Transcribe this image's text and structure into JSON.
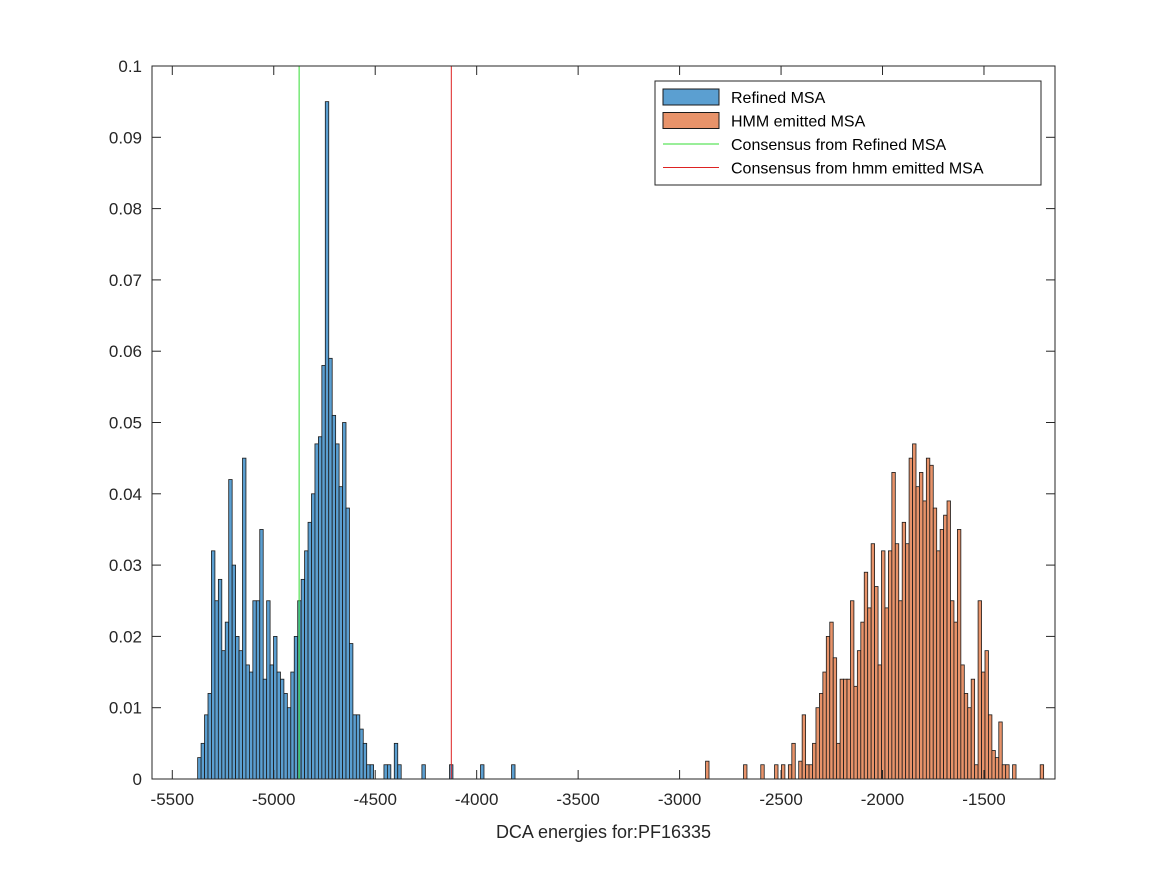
{
  "chart_data": {
    "type": "bar",
    "subtype": "histogram",
    "xlabel": "DCA energies for:PF16335",
    "ylabel": "",
    "title": "",
    "xlim": [
      -5600,
      -1150
    ],
    "ylim": [
      0,
      0.1
    ],
    "xticks": [
      -5500,
      -5000,
      -4500,
      -4000,
      -3500,
      -3000,
      -2500,
      -2000,
      -1500
    ],
    "xtick_labels": [
      "-5500",
      "-5000",
      "-4500",
      "-4000",
      "-3500",
      "-3000",
      "-2500",
      "-2000",
      "-1500"
    ],
    "yticks": [
      0,
      0.01,
      0.02,
      0.03,
      0.04,
      0.05,
      0.06,
      0.07,
      0.08,
      0.09,
      0.1
    ],
    "ytick_labels": [
      "0",
      "0.01",
      "0.02",
      "0.03",
      "0.04",
      "0.05",
      "0.06",
      "0.07",
      "0.08",
      "0.09",
      "0.1"
    ],
    "grid": false,
    "legend_position": "top-right",
    "series": [
      {
        "name": "Refined MSA",
        "kind": "histogram",
        "color": "#5b9fd1",
        "bin_start": -5375,
        "bin_width": 17,
        "values": [
          0.003,
          0.005,
          0.009,
          0.012,
          0.032,
          0.025,
          0.028,
          0.018,
          0.022,
          0.042,
          0.03,
          0.02,
          0.018,
          0.045,
          0.016,
          0.015,
          0.025,
          0.025,
          0.035,
          0.014,
          0.025,
          0.016,
          0.02,
          0.015,
          0.014,
          0.012,
          0.01,
          0.015,
          0.02,
          0.025,
          0.028,
          0.032,
          0.036,
          0.04,
          0.047,
          0.048,
          0.058,
          0.095,
          0.059,
          0.051,
          0.047,
          0.041,
          0.05,
          0.038,
          0.019,
          0.009,
          0.009,
          0.007,
          0.005,
          0.002,
          0.002,
          0,
          0,
          0,
          0.002,
          0.002,
          0,
          0.005,
          0.002,
          0,
          0,
          0,
          0,
          0,
          0,
          0.002,
          0,
          0,
          0,
          0,
          0,
          0,
          0,
          0.002,
          0,
          0,
          0,
          0,
          0,
          0,
          0,
          0,
          0.002,
          0,
          0,
          0,
          0,
          0,
          0,
          0,
          0,
          0.002
        ]
      },
      {
        "name": "HMM emitted MSA",
        "kind": "histogram",
        "color": "#e8936a",
        "bin_start": -2872,
        "bin_width": 17,
        "values": [
          0.0025,
          0,
          0,
          0,
          0,
          0,
          0,
          0,
          0,
          0,
          0,
          0.002,
          0,
          0,
          0,
          0,
          0.002,
          0,
          0,
          0,
          0.002,
          0,
          0.002,
          0,
          0.002,
          0.005,
          0,
          0.0025,
          0.009,
          0.002,
          0.002,
          0.005,
          0.01,
          0.012,
          0.015,
          0.02,
          0.022,
          0.017,
          0.005,
          0.014,
          0.014,
          0.014,
          0.025,
          0.013,
          0.018,
          0.022,
          0.029,
          0.024,
          0.033,
          0.027,
          0.016,
          0.032,
          0.024,
          0.032,
          0.043,
          0.033,
          0.025,
          0.036,
          0.033,
          0.045,
          0.047,
          0.041,
          0.043,
          0.039,
          0.045,
          0.044,
          0.038,
          0.032,
          0.035,
          0.037,
          0.039,
          0.025,
          0.022,
          0.035,
          0.016,
          0.012,
          0.01,
          0.014,
          0.002,
          0.025,
          0.015,
          0.018,
          0.009,
          0.004,
          0.003,
          0.008,
          0.002,
          0.002,
          0,
          0.002,
          0,
          0,
          0,
          0,
          0,
          0,
          0,
          0.002
        ]
      },
      {
        "name": "Consensus from Refined MSA",
        "kind": "vline",
        "color": "#33dd33",
        "x": -4875
      },
      {
        "name": "Consensus from hmm emitted MSA",
        "kind": "vline",
        "color": "#dd2222",
        "x": -4125
      }
    ]
  }
}
